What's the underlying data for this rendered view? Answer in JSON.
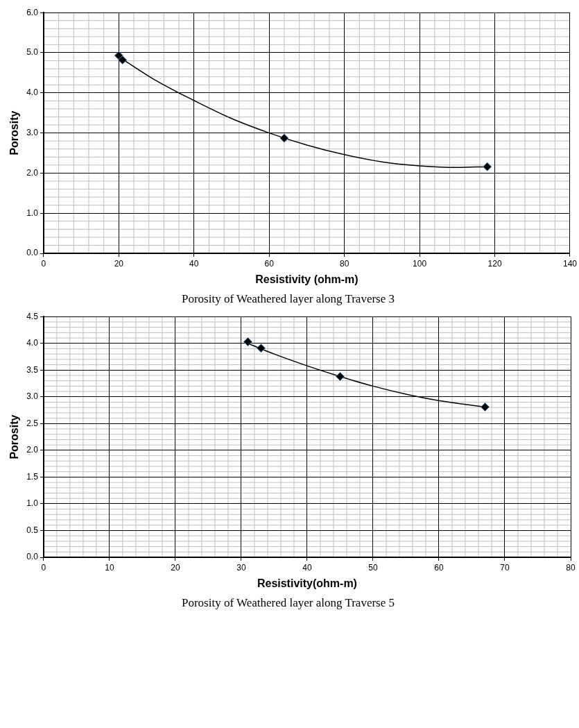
{
  "chart_data": [
    {
      "type": "scatter",
      "title": "Porosity of Weathered layer along Traverse 3",
      "xlabel": "Resistivity (ohm-m)",
      "ylabel": "Porosity",
      "series": [
        {
          "color": "#000000",
          "marker": "diamond",
          "x": [
            20,
            21,
            64,
            118
          ],
          "values": [
            4.93,
            4.82,
            2.87,
            2.16
          ]
        },
        {
          "type": "line",
          "color": "#000000",
          "marker": "none",
          "line_style": "solid",
          "x": [
            20,
            30,
            40,
            50,
            60,
            70,
            80,
            90,
            100,
            110,
            118
          ],
          "values": [
            4.9,
            4.3,
            3.81,
            3.36,
            3.0,
            2.7,
            2.46,
            2.28,
            2.18,
            2.14,
            2.16
          ]
        }
      ],
      "xlim": [
        0,
        140
      ],
      "xticks": [
        0,
        20,
        40,
        60,
        80,
        100,
        120,
        140
      ],
      "ylim": [
        0,
        6
      ],
      "yticks": [
        {
          "value": 0,
          "label": "0.0"
        },
        {
          "value": 1,
          "label": "1.0"
        },
        {
          "value": 2,
          "label": "2.0"
        },
        {
          "value": 3,
          "label": "3.0"
        },
        {
          "value": 4,
          "label": "4.0"
        },
        {
          "value": 5,
          "label": "5.0"
        },
        {
          "value": 6,
          "label": "6.0"
        }
      ],
      "grid": true,
      "legend": false
    },
    {
      "type": "scatter",
      "title": "Porosity of Weathered layer along Traverse 5",
      "xlabel": "Resistivity(ohm-m)",
      "ylabel": "Porosity",
      "series": [
        {
          "color": "#000000",
          "marker": "diamond",
          "x": [
            31,
            33,
            45,
            67
          ],
          "values": [
            4.03,
            3.91,
            3.38,
            2.81
          ]
        },
        {
          "type": "line",
          "color": "#000000",
          "marker": "none",
          "line_style": "solid",
          "x": [
            31,
            35,
            40,
            45,
            50,
            55,
            60,
            67
          ],
          "values": [
            4.0,
            3.8,
            3.58,
            3.38,
            3.2,
            3.05,
            2.93,
            2.81
          ]
        }
      ],
      "xlim": [
        0,
        80
      ],
      "xticks": [
        0,
        10,
        20,
        30,
        40,
        50,
        60,
        70,
        80
      ],
      "ylim": [
        0,
        4.5
      ],
      "yticks": [
        {
          "value": 0,
          "label": "0.0"
        },
        {
          "value": 0.5,
          "label": "0.5"
        },
        {
          "value": 1,
          "label": "1.0"
        },
        {
          "value": 1.5,
          "label": "1.5"
        },
        {
          "value": 2,
          "label": "2.0"
        },
        {
          "value": 2.5,
          "label": "2.5"
        },
        {
          "value": 3,
          "label": "3.0"
        },
        {
          "value": 3.5,
          "label": "3.5"
        },
        {
          "value": 4,
          "label": "4.0"
        },
        {
          "value": 4.5,
          "label": "4.5"
        }
      ],
      "grid": true,
      "legend": false
    }
  ]
}
